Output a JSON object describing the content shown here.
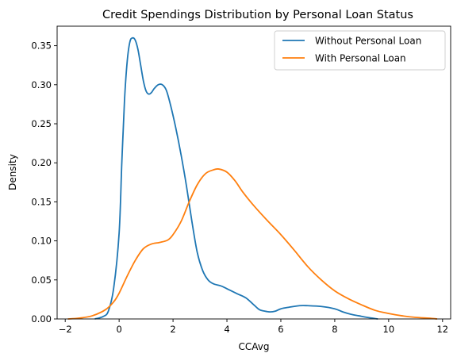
{
  "chart_data": {
    "type": "line",
    "title": "Credit Spendings Distribution by Personal Loan Status",
    "xlabel": "CCAvg",
    "ylabel": "Density",
    "xlim": [
      -2.3,
      12.3
    ],
    "ylim": [
      0,
      0.375
    ],
    "xticks": [
      -2,
      0,
      2,
      4,
      6,
      8,
      10,
      12
    ],
    "xtick_labels": [
      "−2",
      "0",
      "2",
      "4",
      "6",
      "8",
      "10",
      "12"
    ],
    "yticks": [
      0,
      0.05,
      0.1,
      0.15,
      0.2,
      0.25,
      0.3,
      0.35
    ],
    "ytick_labels": [
      "0.00",
      "0.05",
      "0.10",
      "0.15",
      "0.20",
      "0.25",
      "0.30",
      "0.35"
    ],
    "grid": false,
    "legend_position": "top-right",
    "series": [
      {
        "name": "Without Personal Loan",
        "color": "#1f77b4",
        "points": [
          [
            -0.9,
            0
          ],
          [
            -0.6,
            0.003
          ],
          [
            -0.4,
            0.01
          ],
          [
            -0.2,
            0.04
          ],
          [
            0,
            0.11
          ],
          [
            0.1,
            0.2
          ],
          [
            0.2,
            0.28
          ],
          [
            0.3,
            0.33
          ],
          [
            0.4,
            0.355
          ],
          [
            0.5,
            0.36
          ],
          [
            0.6,
            0.357
          ],
          [
            0.7,
            0.345
          ],
          [
            0.8,
            0.325
          ],
          [
            0.9,
            0.305
          ],
          [
            1.0,
            0.292
          ],
          [
            1.1,
            0.288
          ],
          [
            1.2,
            0.29
          ],
          [
            1.3,
            0.295
          ],
          [
            1.45,
            0.3
          ],
          [
            1.6,
            0.3
          ],
          [
            1.75,
            0.293
          ],
          [
            1.9,
            0.275
          ],
          [
            2.1,
            0.245
          ],
          [
            2.3,
            0.21
          ],
          [
            2.5,
            0.17
          ],
          [
            2.7,
            0.125
          ],
          [
            2.9,
            0.085
          ],
          [
            3.1,
            0.062
          ],
          [
            3.3,
            0.05
          ],
          [
            3.5,
            0.045
          ],
          [
            3.8,
            0.042
          ],
          [
            4.1,
            0.037
          ],
          [
            4.4,
            0.032
          ],
          [
            4.7,
            0.027
          ],
          [
            5.0,
            0.018
          ],
          [
            5.2,
            0.012
          ],
          [
            5.4,
            0.01
          ],
          [
            5.6,
            0.009
          ],
          [
            5.8,
            0.01
          ],
          [
            6.0,
            0.013
          ],
          [
            6.3,
            0.015
          ],
          [
            6.7,
            0.017
          ],
          [
            7.0,
            0.017
          ],
          [
            7.5,
            0.016
          ],
          [
            8.0,
            0.013
          ],
          [
            8.3,
            0.009
          ],
          [
            8.6,
            0.006
          ],
          [
            8.9,
            0.004
          ],
          [
            9.2,
            0.002
          ],
          [
            9.6,
            0
          ]
        ]
      },
      {
        "name": "With Personal Loan",
        "color": "#ff7f0e",
        "points": [
          [
            -1.9,
            0
          ],
          [
            -1.5,
            0.001
          ],
          [
            -1.0,
            0.004
          ],
          [
            -0.5,
            0.012
          ],
          [
            -0.2,
            0.022
          ],
          [
            0,
            0.033
          ],
          [
            0.3,
            0.055
          ],
          [
            0.6,
            0.075
          ],
          [
            0.9,
            0.09
          ],
          [
            1.2,
            0.096
          ],
          [
            1.5,
            0.098
          ],
          [
            1.8,
            0.101
          ],
          [
            2.0,
            0.108
          ],
          [
            2.3,
            0.125
          ],
          [
            2.6,
            0.15
          ],
          [
            2.9,
            0.172
          ],
          [
            3.2,
            0.186
          ],
          [
            3.5,
            0.191
          ],
          [
            3.7,
            0.192
          ],
          [
            4.0,
            0.188
          ],
          [
            4.3,
            0.177
          ],
          [
            4.6,
            0.162
          ],
          [
            5.0,
            0.145
          ],
          [
            5.5,
            0.126
          ],
          [
            6.0,
            0.108
          ],
          [
            6.5,
            0.088
          ],
          [
            7.0,
            0.067
          ],
          [
            7.5,
            0.05
          ],
          [
            8.0,
            0.036
          ],
          [
            8.5,
            0.026
          ],
          [
            9.0,
            0.018
          ],
          [
            9.5,
            0.011
          ],
          [
            10.0,
            0.007
          ],
          [
            10.5,
            0.004
          ],
          [
            11.0,
            0.002
          ],
          [
            11.5,
            0.001
          ],
          [
            11.8,
            0
          ]
        ]
      }
    ]
  }
}
